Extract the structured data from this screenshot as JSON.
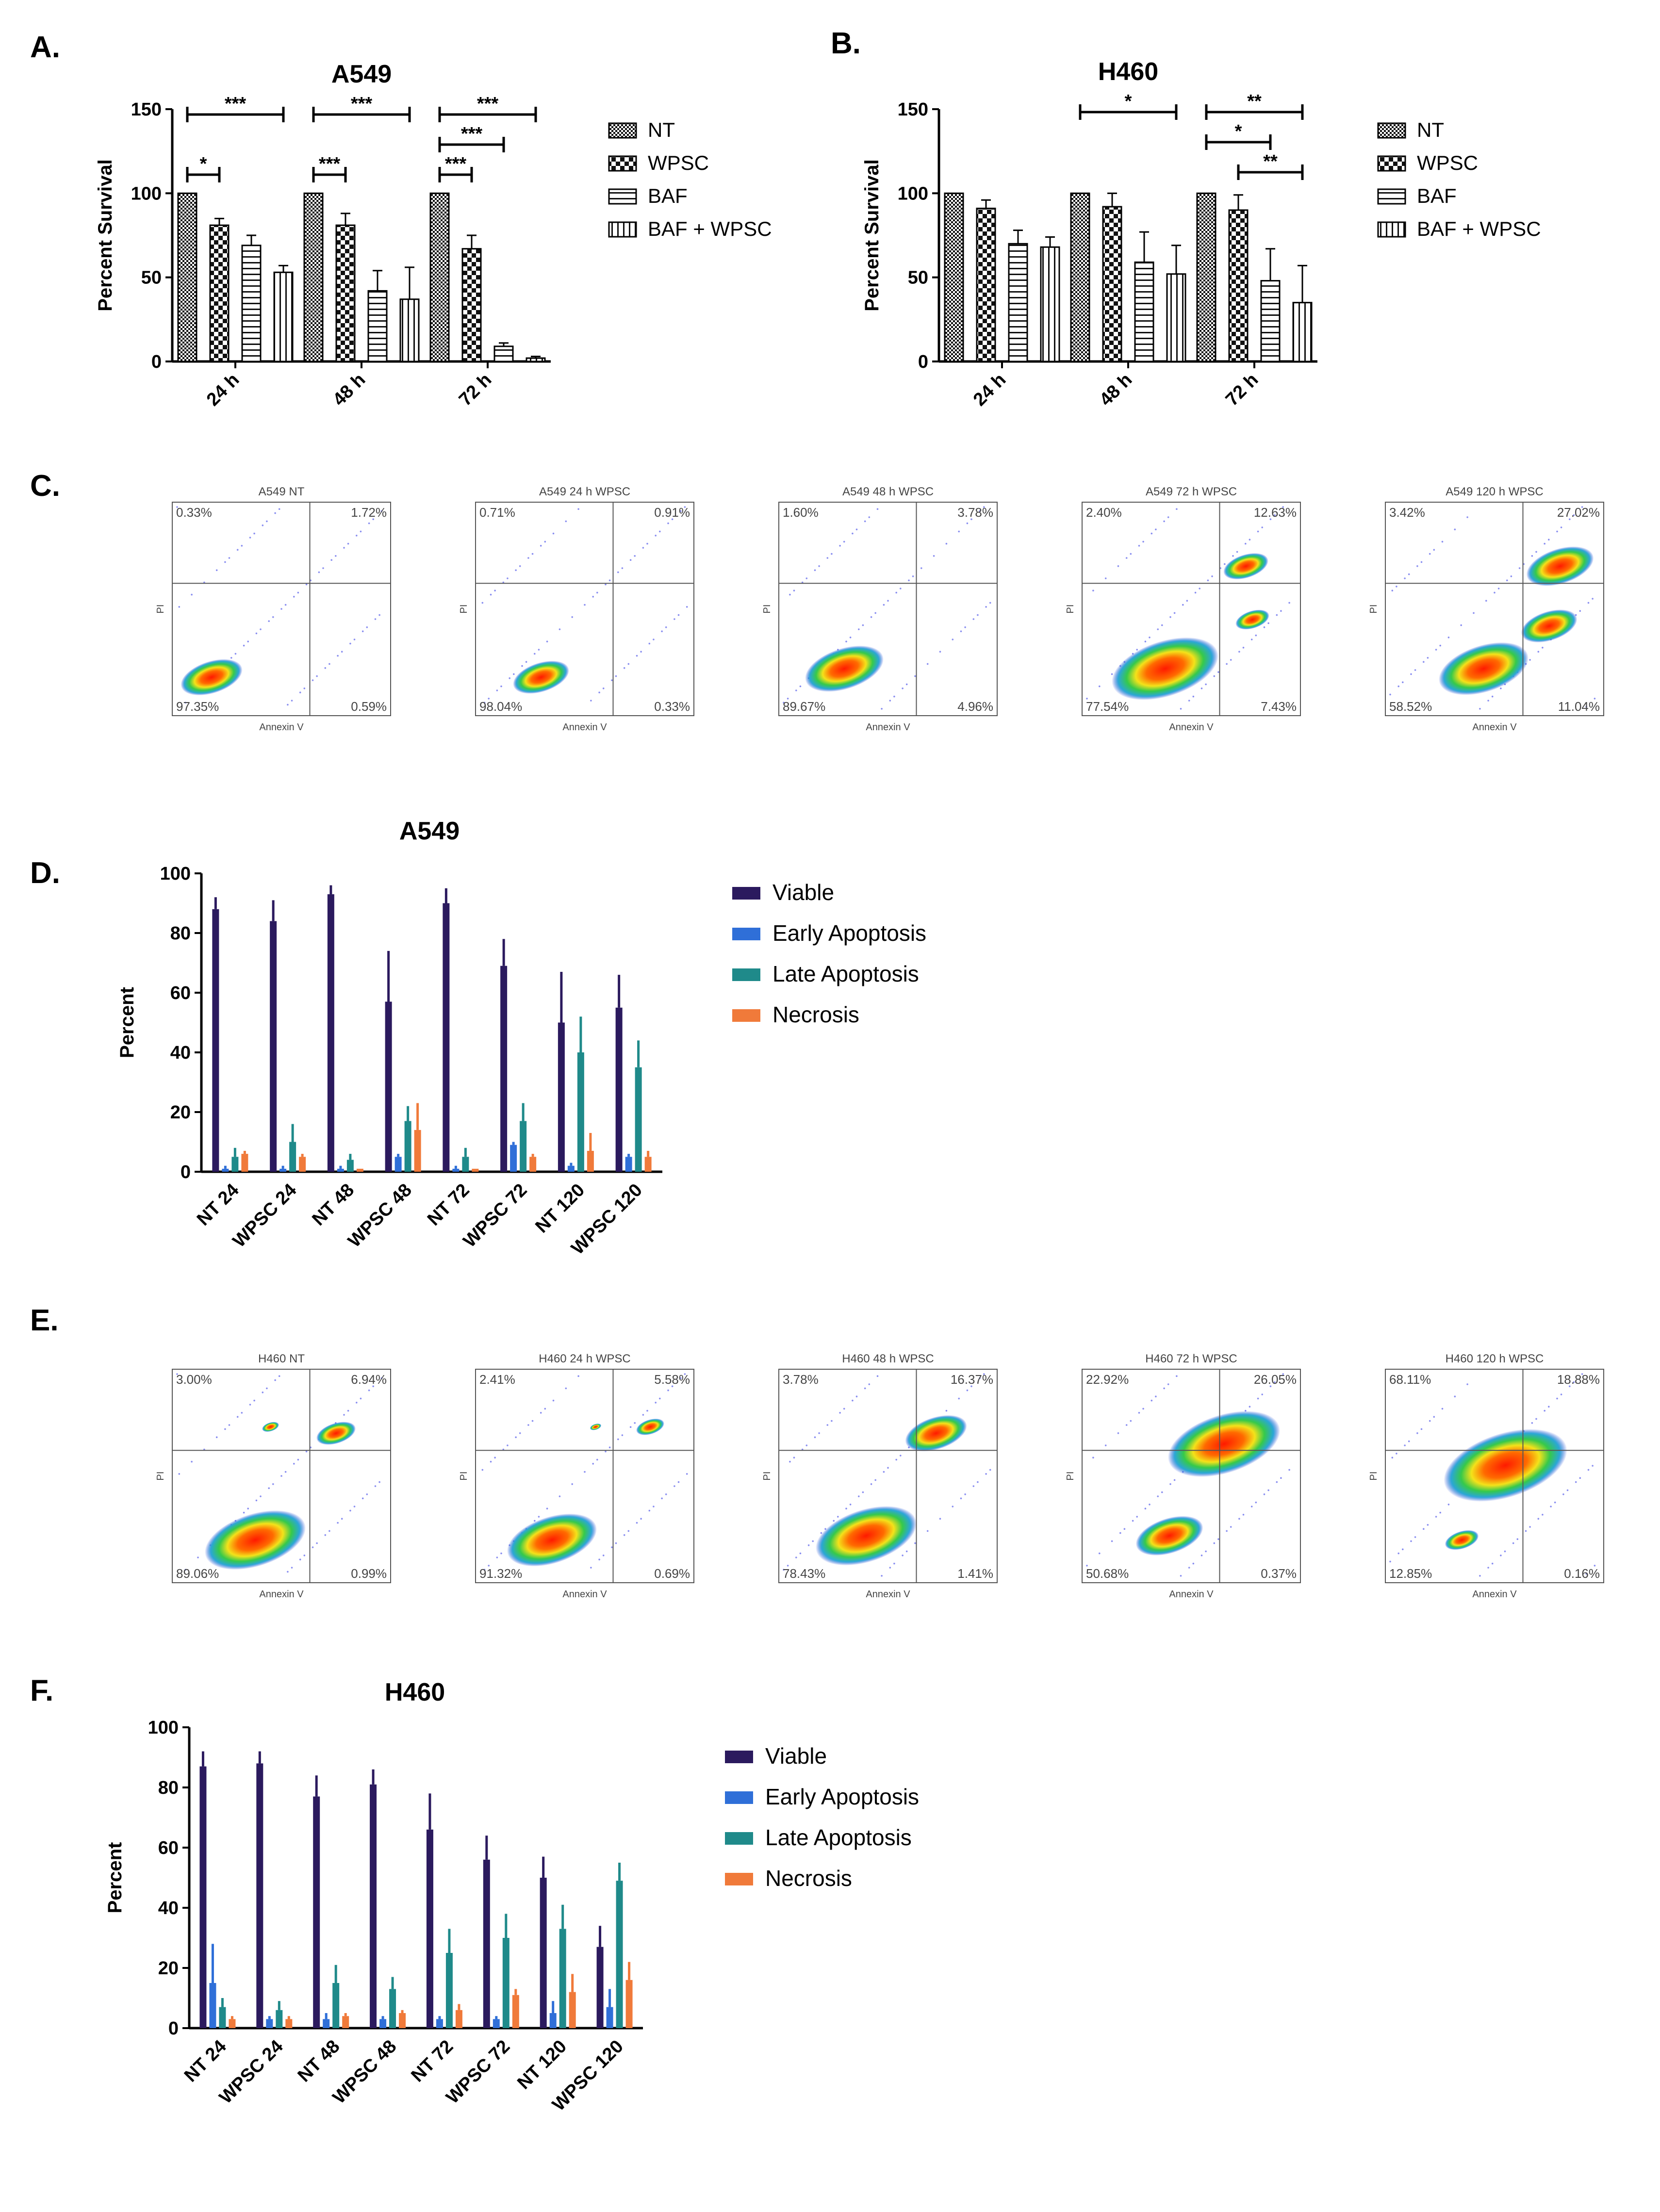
{
  "panel_labels": [
    "A.",
    "B.",
    "C.",
    "D.",
    "E.",
    "F."
  ],
  "colors": {
    "viable": "#2b1a5e",
    "early": "#2f6fd8",
    "late": "#1f8a8a",
    "necrosis": "#f07a3a"
  },
  "chart_data": [
    {
      "id": "A",
      "type": "bar",
      "title": "A549",
      "ylabel": "Percent Survival",
      "ylim": [
        0,
        150
      ],
      "yticks": [
        "0",
        "50",
        "100",
        "150"
      ],
      "categories": [
        "24 h",
        "48 h",
        "72 h"
      ],
      "series": [
        {
          "name": "NT",
          "pattern": "checker",
          "values": [
            100,
            100,
            100
          ],
          "errors": [
            0,
            0,
            0
          ]
        },
        {
          "name": "WPSC",
          "pattern": "bigchecker",
          "values": [
            81,
            81,
            67
          ],
          "errors": [
            4,
            7,
            8
          ]
        },
        {
          "name": "BAF",
          "pattern": "hstripe",
          "values": [
            69,
            42,
            9
          ],
          "errors": [
            6,
            12,
            2
          ]
        },
        {
          "name": "BAF + WPSC",
          "pattern": "vstripe",
          "values": [
            53,
            37,
            2
          ],
          "errors": [
            4,
            19,
            1
          ]
        }
      ],
      "significance": [
        {
          "label": "*",
          "group": 0,
          "from": 0,
          "to": 1,
          "level": 1
        },
        {
          "label": "***",
          "group": 0,
          "from": 0,
          "to": 3,
          "level": 3
        },
        {
          "label": "***",
          "group": 1,
          "from": 0,
          "to": 1,
          "level": 1
        },
        {
          "label": "***",
          "group": 1,
          "from": 0,
          "to": 3,
          "level": 3
        },
        {
          "label": "***",
          "group": 2,
          "from": 0,
          "to": 1,
          "level": 1
        },
        {
          "label": "***",
          "group": 2,
          "from": 0,
          "to": 2,
          "level": 2
        },
        {
          "label": "***",
          "group": 2,
          "from": 0,
          "to": 3,
          "level": 3
        }
      ]
    },
    {
      "id": "B",
      "type": "bar",
      "title": "H460",
      "ylabel": "Percent Survival",
      "ylim": [
        0,
        150
      ],
      "yticks": [
        "0",
        "50",
        "100",
        "150"
      ],
      "categories": [
        "24 h",
        "48 h",
        "72 h"
      ],
      "series": [
        {
          "name": "NT",
          "pattern": "checker",
          "values": [
            100,
            100,
            100
          ],
          "errors": [
            0,
            0,
            0
          ]
        },
        {
          "name": "WPSC",
          "pattern": "bigchecker",
          "values": [
            91,
            92,
            90
          ],
          "errors": [
            5,
            8,
            9
          ]
        },
        {
          "name": "BAF",
          "pattern": "hstripe",
          "values": [
            70,
            59,
            48
          ],
          "errors": [
            8,
            18,
            19
          ]
        },
        {
          "name": "BAF + WPSC",
          "pattern": "vstripe",
          "values": [
            68,
            52,
            35
          ],
          "errors": [
            6,
            17,
            22
          ]
        }
      ],
      "significance": [
        {
          "label": "*",
          "group": 1,
          "from": 0,
          "to": 3,
          "level": 3
        },
        {
          "label": "*",
          "group": 2,
          "from": 0,
          "to": 2,
          "level": 2
        },
        {
          "label": "**",
          "group": 2,
          "from": 0,
          "to": 3,
          "level": 3
        },
        {
          "label": "**",
          "group": 2,
          "from": 1,
          "to": 3,
          "level": 1
        }
      ]
    },
    {
      "id": "D",
      "type": "bar",
      "title": "A549",
      "ylabel": "Percent",
      "ylim": [
        0,
        100
      ],
      "yticks": [
        "0",
        "20",
        "40",
        "60",
        "80",
        "100"
      ],
      "categories": [
        "NT 24",
        "WPSC 24",
        "NT 48",
        "WPSC 48",
        "NT 72",
        "WPSC 72",
        "NT 120",
        "WPSC 120"
      ],
      "series": [
        {
          "name": "Viable",
          "values": [
            88,
            84,
            93,
            57,
            90,
            69,
            50,
            55
          ],
          "errors": [
            4,
            7,
            3,
            17,
            5,
            9,
            17,
            11
          ]
        },
        {
          "name": "Early Apoptosis",
          "values": [
            1,
            1,
            1,
            5,
            1,
            9,
            2,
            5
          ],
          "errors": [
            1,
            1,
            1,
            1,
            1,
            1,
            1,
            1
          ]
        },
        {
          "name": "Late Apoptosis",
          "values": [
            5,
            10,
            4,
            17,
            5,
            17,
            40,
            35
          ],
          "errors": [
            3,
            6,
            2,
            5,
            3,
            6,
            12,
            9
          ]
        },
        {
          "name": "Necrosis",
          "values": [
            6,
            5,
            1,
            14,
            1,
            5,
            7,
            5
          ],
          "errors": [
            1,
            1,
            0,
            9,
            0,
            1,
            6,
            2
          ]
        }
      ]
    },
    {
      "id": "F",
      "type": "bar",
      "title": "H460",
      "ylabel": "Percent",
      "ylim": [
        0,
        100
      ],
      "yticks": [
        "0",
        "20",
        "40",
        "60",
        "80",
        "100"
      ],
      "categories": [
        "NT 24",
        "WPSC 24",
        "NT 48",
        "WPSC 48",
        "NT 72",
        "WPSC 72",
        "NT 120",
        "WPSC 120"
      ],
      "series": [
        {
          "name": "Viable",
          "values": [
            87,
            88,
            77,
            81,
            66,
            56,
            50,
            27
          ],
          "errors": [
            5,
            4,
            7,
            5,
            12,
            8,
            7,
            7
          ]
        },
        {
          "name": "Early Apoptosis",
          "values": [
            15,
            3,
            3,
            3,
            3,
            3,
            5,
            7
          ],
          "errors": [
            13,
            1,
            2,
            1,
            1,
            1,
            4,
            6
          ]
        },
        {
          "name": "Late Apoptosis",
          "values": [
            7,
            6,
            15,
            13,
            25,
            30,
            33,
            49
          ],
          "errors": [
            3,
            3,
            6,
            4,
            8,
            8,
            8,
            6
          ]
        },
        {
          "name": "Necrosis",
          "values": [
            3,
            3,
            4,
            5,
            6,
            11,
            12,
            16
          ],
          "errors": [
            1,
            1,
            1,
            1,
            2,
            2,
            6,
            6
          ]
        }
      ]
    }
  ],
  "flow_axis": {
    "xlabel": "Annexin V",
    "ylabel": "PI"
  },
  "flow_A549": [
    {
      "title": "A549 NT",
      "q": [
        "0.33%",
        "1.72%",
        "97.35%",
        "0.59%"
      ],
      "pops": [
        [
          0.18,
          0.82,
          0.55
        ]
      ]
    },
    {
      "title": "A549 24 h WPSC",
      "q": [
        "0.71%",
        "0.91%",
        "98.04%",
        "0.33%"
      ],
      "pops": [
        [
          0.3,
          0.82,
          0.5
        ]
      ]
    },
    {
      "title": "A549 48 h WPSC",
      "q": [
        "1.60%",
        "3.78%",
        "89.67%",
        "4.96%"
      ],
      "pops": [
        [
          0.3,
          0.78,
          0.7
        ]
      ]
    },
    {
      "title": "A549 72 h  WPSC",
      "q": [
        "2.40%",
        "12.63%",
        "77.54%",
        "7.43%"
      ],
      "pops": [
        [
          0.38,
          0.78,
          0.95
        ],
        [
          0.75,
          0.3,
          0.4
        ],
        [
          0.78,
          0.55,
          0.3
        ]
      ]
    },
    {
      "title": "A549 120 h WPSC",
      "q": [
        "3.42%",
        "27.02%",
        "58.52%",
        "11.04%"
      ],
      "pops": [
        [
          0.45,
          0.78,
          0.8
        ],
        [
          0.8,
          0.3,
          0.6
        ],
        [
          0.75,
          0.58,
          0.5
        ]
      ]
    }
  ],
  "flow_H460": [
    {
      "title": "H460 NT",
      "q": [
        "3.00%",
        "6.94%",
        "89.06%",
        "0.99%"
      ],
      "pops": [
        [
          0.38,
          0.8,
          0.9
        ],
        [
          0.75,
          0.3,
          0.35
        ],
        [
          0.45,
          0.27,
          0.15
        ]
      ]
    },
    {
      "title": "H460 24 h WPSC",
      "q": [
        "2.41%",
        "5.58%",
        "91.32%",
        "0.69%"
      ],
      "pops": [
        [
          0.35,
          0.8,
          0.8
        ],
        [
          0.8,
          0.27,
          0.25
        ],
        [
          0.55,
          0.27,
          0.1
        ]
      ]
    },
    {
      "title": "H460 48 h WPSC",
      "q": [
        "3.78%",
        "16.37%",
        "78.43%",
        "1.41%"
      ],
      "pops": [
        [
          0.4,
          0.78,
          0.9
        ],
        [
          0.72,
          0.3,
          0.55
        ]
      ]
    },
    {
      "title": "H460 72 h WPSC",
      "q": [
        "22.92%",
        "26.05%",
        "50.68%",
        "0.37%"
      ],
      "pops": [
        [
          0.4,
          0.78,
          0.6
        ],
        [
          0.65,
          0.35,
          1.0
        ]
      ]
    },
    {
      "title": "H460 120 h WPSC",
      "q": [
        "68.11%",
        "18.88%",
        "12.85%",
        "0.16%"
      ],
      "pops": [
        [
          0.55,
          0.45,
          1.1
        ],
        [
          0.35,
          0.8,
          0.3
        ]
      ]
    }
  ]
}
